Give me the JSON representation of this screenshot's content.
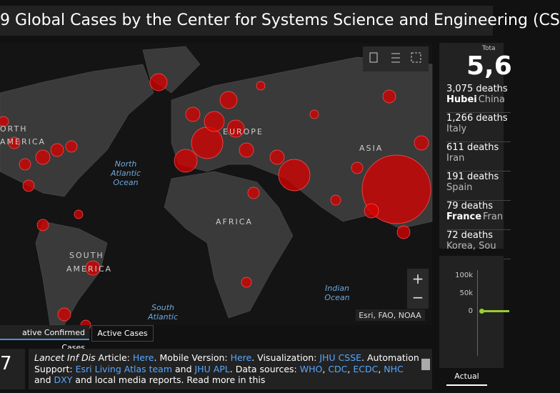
{
  "header": {
    "title": "9 Global Cases by the Center for Systems Science and Engineering (CS"
  },
  "map": {
    "labels": [
      "ORTH",
      "AMERICA",
      "EUROPE",
      "ASIA",
      "AFRICA",
      "SOUTH",
      "AMERICA",
      "North",
      "Atlantic",
      "Ocean",
      "Indian",
      "Ocean",
      "South",
      "Atlantic"
    ],
    "attribution": "Esri, FAO, NOAA",
    "zoom_in": "+",
    "zoom_out": "−"
  },
  "tabs": [
    "ative Confirmed Cases",
    "Active Cases"
  ],
  "total": {
    "label": "Tota",
    "value": "5,6"
  },
  "deaths": [
    {
      "deaths": "3,075 deaths",
      "place_bold": "Hubei",
      "place": "China"
    },
    {
      "deaths": "1,266 deaths",
      "place": "Italy"
    },
    {
      "deaths": "611 deaths",
      "place": "Iran"
    },
    {
      "deaths": "191 deaths",
      "place": "Spain"
    },
    {
      "deaths": "79 deaths",
      "place_bold": "France",
      "place": "Fran"
    },
    {
      "deaths": "72 deaths",
      "place": "Korea, Sou"
    }
  ],
  "mini_chart": {
    "ticks": [
      "100k",
      "50k",
      "0"
    ],
    "tab": "Actual"
  },
  "footer": {
    "counter": "7",
    "info": [
      {
        "text": "Lancet Inf Dis",
        "italic": true
      },
      {
        "text": " Article: "
      },
      {
        "text": "Here",
        "link": true
      },
      {
        "text": ". Mobile Version: "
      },
      {
        "text": "Here",
        "link": true
      },
      {
        "text": ". Visualization: "
      },
      {
        "text": "JHU CSSE",
        "link": true
      },
      {
        "text": ". Automation Support: "
      },
      {
        "text": "Esri Living Atlas team",
        "link": true
      },
      {
        "text": " and "
      },
      {
        "text": "JHU APL",
        "link": true
      },
      {
        "text": ". Data sources: "
      },
      {
        "text": "WHO",
        "link": true
      },
      {
        "text": ", "
      },
      {
        "text": "CDC",
        "link": true
      },
      {
        "text": ", "
      },
      {
        "text": "ECDC",
        "link": true
      },
      {
        "text": ", "
      },
      {
        "text": "NHC",
        "link": true
      },
      {
        "text": " and "
      },
      {
        "text": "DXY",
        "link": true
      },
      {
        "text": " and local media reports. Read more in this"
      }
    ]
  }
}
